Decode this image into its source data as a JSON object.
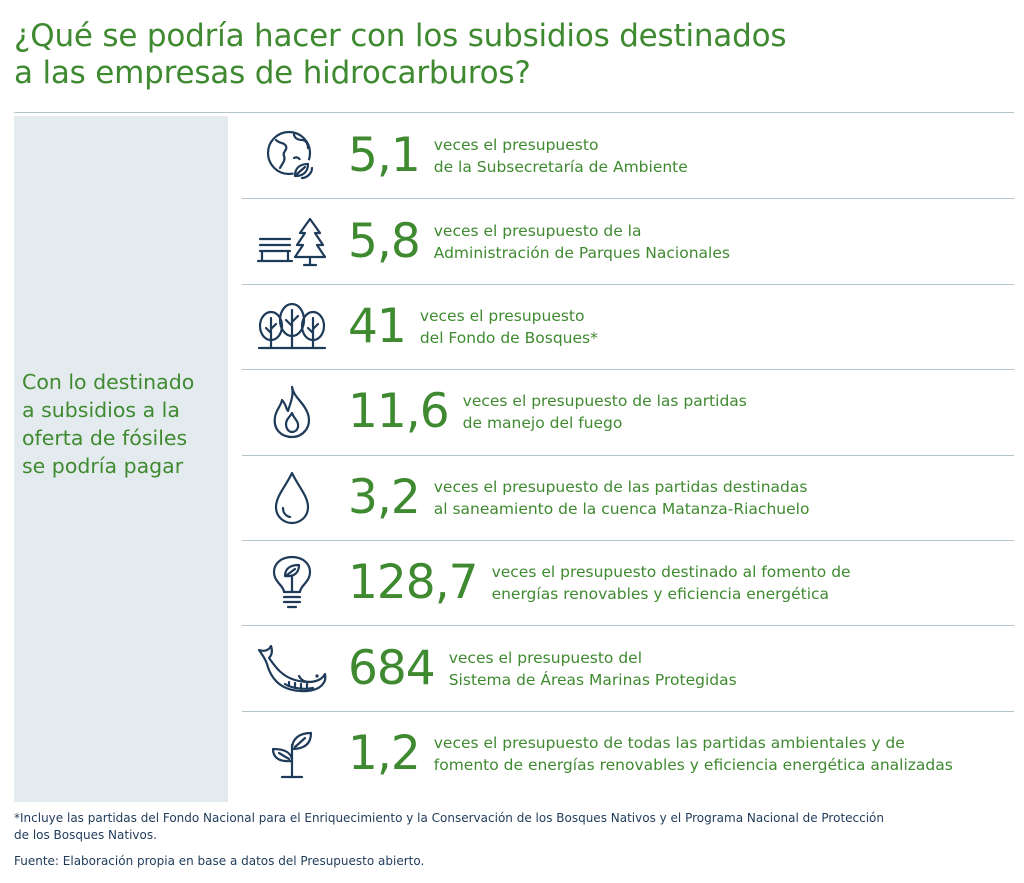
{
  "title": {
    "line1": "¿Qué se podría hacer con los subsidios destinados",
    "line2": "a las empresas de hidrocarburos?"
  },
  "left_panel": {
    "lines": [
      "Con lo destinado",
      "a subsidios a la",
      "oferta de fósiles",
      "se podría pagar"
    ]
  },
  "rows": [
    {
      "icon": "globe-leaf-icon",
      "number": "5,1",
      "line1": "veces el presupuesto",
      "line2": "de la Subsecretaría de Ambiente"
    },
    {
      "icon": "park-bench-tree-icon",
      "number": "5,8",
      "line1": "veces el presupuesto de la",
      "line2": "Administración de Parques Nacionales"
    },
    {
      "icon": "forest-trees-icon",
      "number": "41",
      "line1": "veces el presupuesto",
      "line2": "del Fondo de Bosques*"
    },
    {
      "icon": "flame-icon",
      "number": "11,6",
      "line1": "veces el presupuesto de las partidas",
      "line2": "de manejo del fuego"
    },
    {
      "icon": "water-drop-icon",
      "number": "3,2",
      "line1": "veces el presupuesto de las partidas destinadas",
      "line2": "al saneamiento de la cuenca Matanza-Riachuelo"
    },
    {
      "icon": "lightbulb-leaf-icon",
      "number": "128,7",
      "line1": "veces el presupuesto destinado al fomento de",
      "line2": "energías renovables y eficiencia energética"
    },
    {
      "icon": "whale-icon",
      "number": "684",
      "line1": "veces el presupuesto del",
      "line2": "Sistema de Áreas Marinas Protegidas"
    },
    {
      "icon": "sprout-icon",
      "number": "1,2",
      "line1": "veces el presupuesto de todas las partidas ambientales y de",
      "line2": "fomento de energías renovables y eficiencia energética analizadas"
    }
  ],
  "footnote": {
    "line1": "*Incluye las partidas del Fondo Nacional para el Enriquecimiento y la Conservación de los Bosques Nativos y el Programa Nacional de Protección",
    "line2": "de los Bosques Nativos."
  },
  "source": "Fuente: Elaboración propia en base a datos del Presupuesto abierto.",
  "colors": {
    "green": "#3f8a30",
    "navy": "#1f3b5a",
    "panel": "#e4ebef",
    "rule": "#b5c3cc"
  }
}
